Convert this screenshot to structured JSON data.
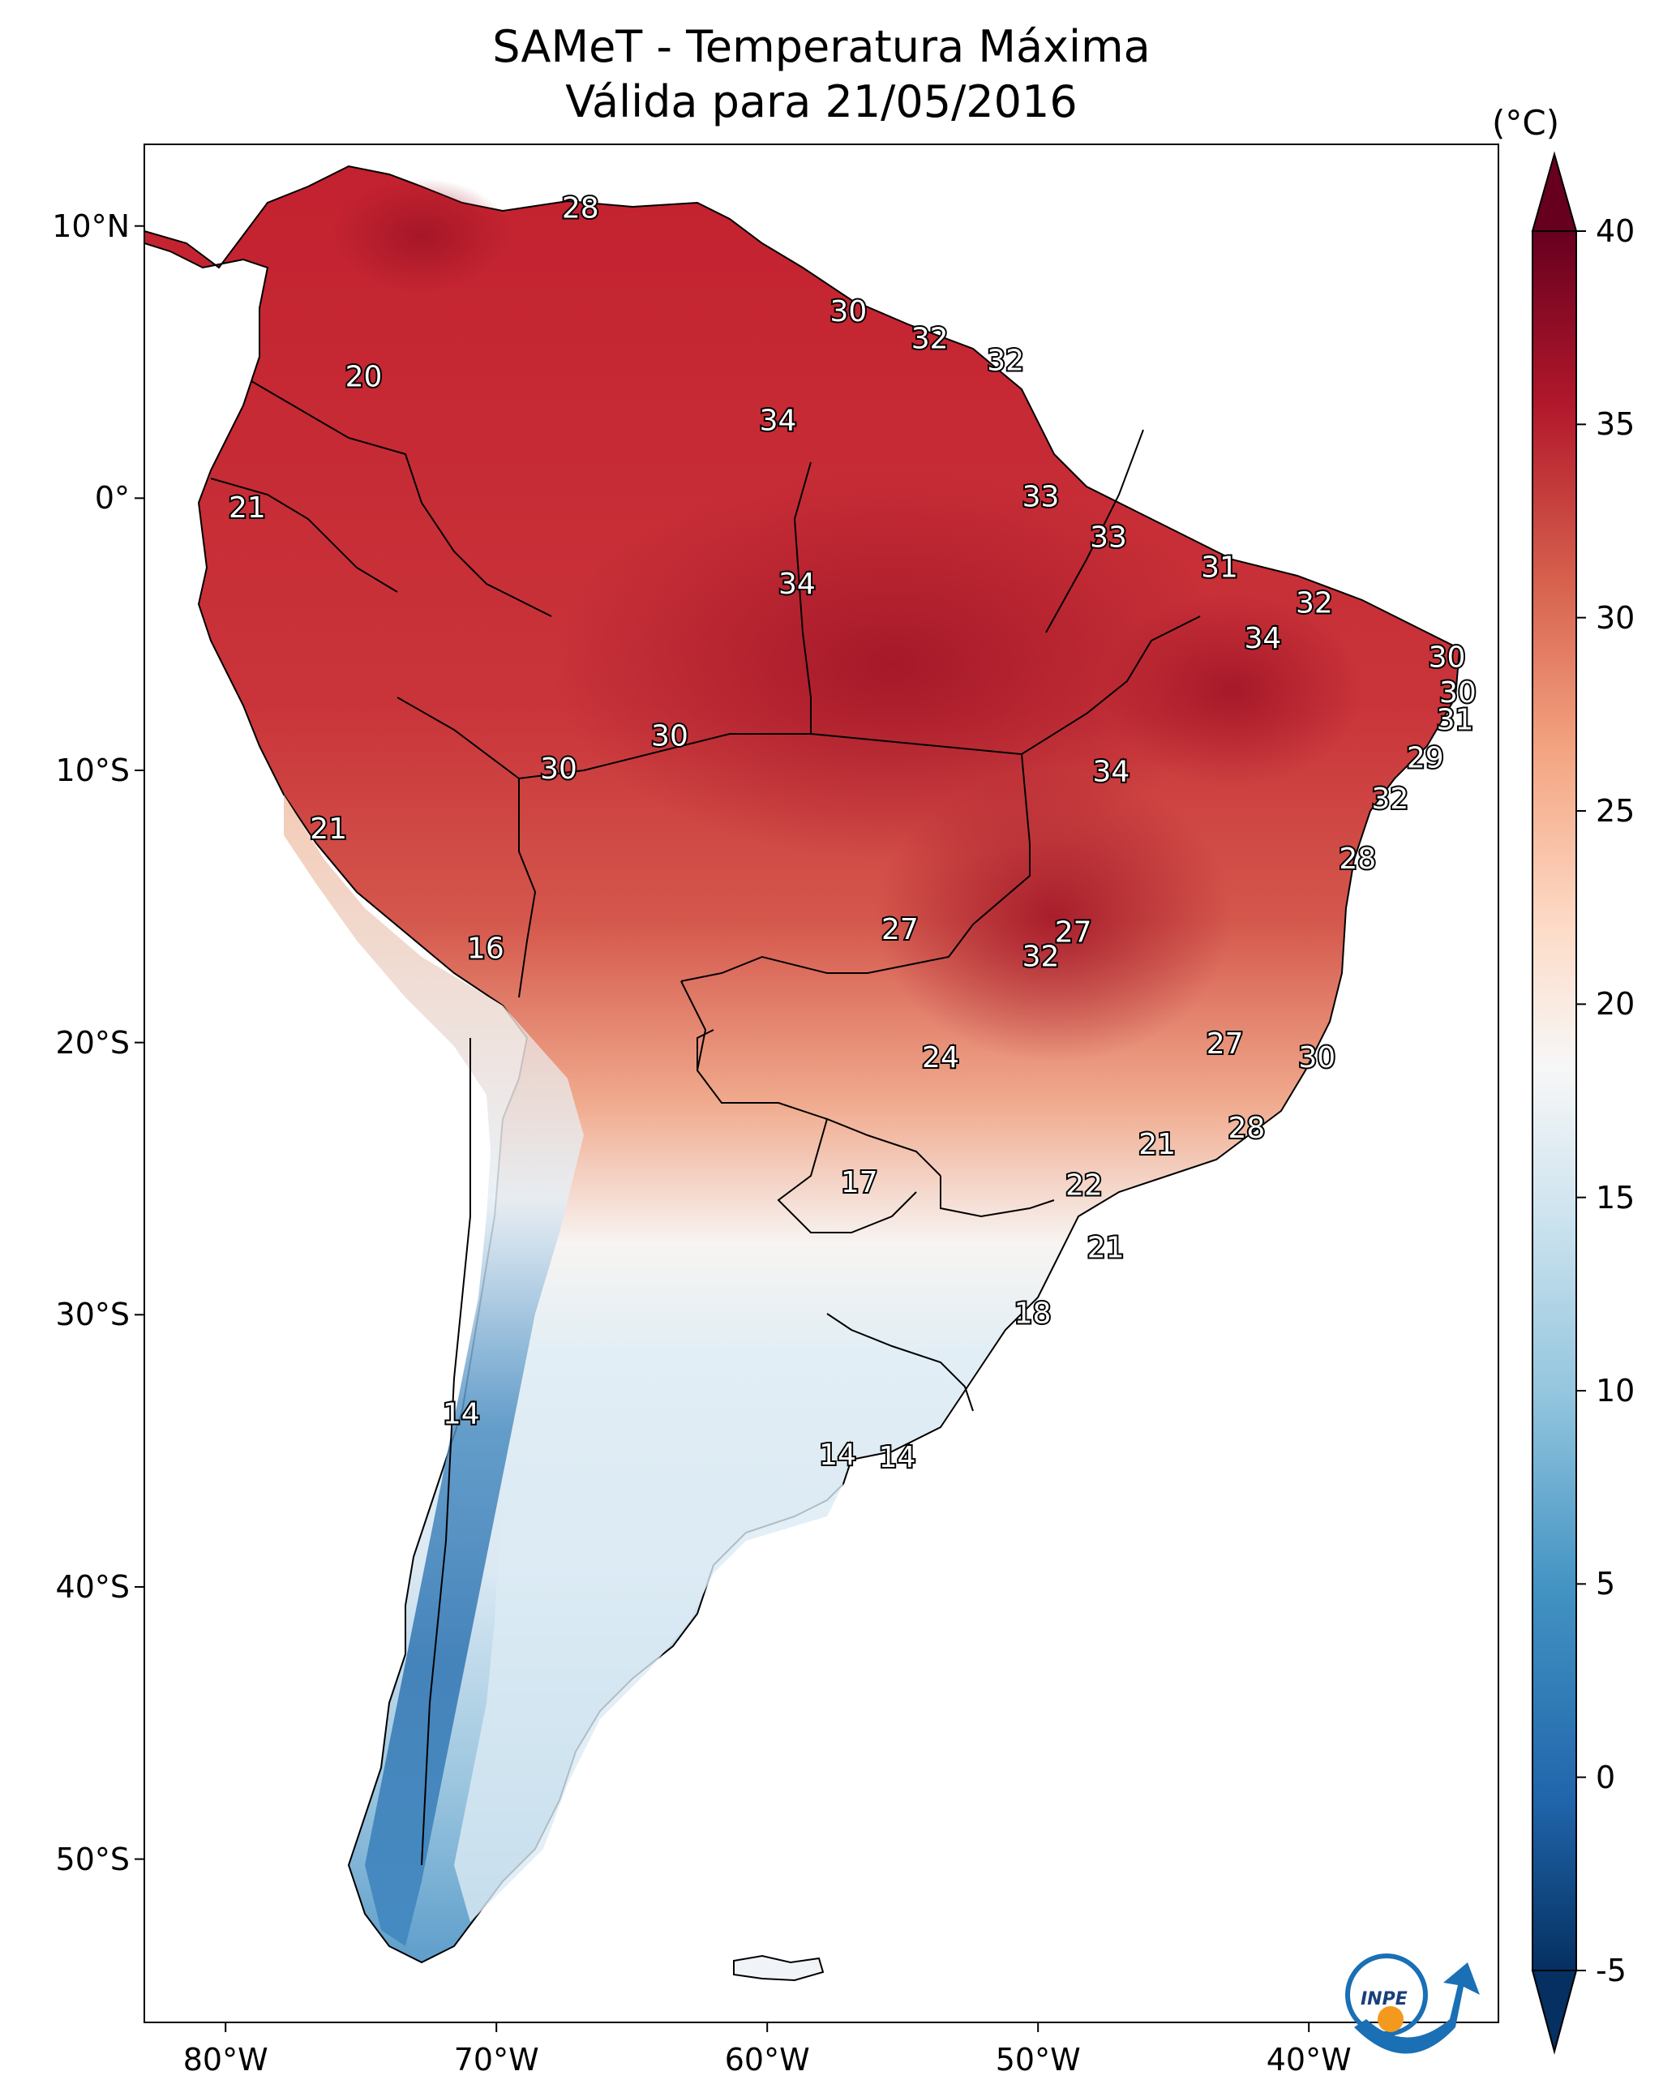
{
  "title": {
    "line1": "SAMeT - Temperatura Máxima",
    "line2": "Válida para 21/05/2016"
  },
  "map": {
    "lon_range": [
      -83,
      -33
    ],
    "lat_range": [
      -56,
      13
    ],
    "lat_ticks": [
      "10°N",
      "0°",
      "10°S",
      "20°S",
      "30°S",
      "40°S",
      "50°S"
    ],
    "lat_tick_values": [
      10,
      0,
      -10,
      -20,
      -30,
      -40,
      -50
    ],
    "lon_ticks": [
      "80°W",
      "70°W",
      "60°W",
      "50°W",
      "40°W"
    ],
    "lon_tick_values": [
      -80,
      -70,
      -60,
      -50,
      -40
    ]
  },
  "colorbar": {
    "unit": "(°C)",
    "ticks": [
      "40",
      "35",
      "30",
      "25",
      "20",
      "15",
      "10",
      "5",
      "0",
      "-5"
    ],
    "range": [
      -5,
      40
    ],
    "colors": [
      "#053061",
      "#2166ac",
      "#4393c3",
      "#92c5de",
      "#d1e5f0",
      "#f7f7f7",
      "#fddbc7",
      "#f4a582",
      "#d6604d",
      "#b2182b",
      "#67001f"
    ]
  },
  "value_labels": [
    {
      "text": "28",
      "lon": -66.9,
      "lat": 10.6
    },
    {
      "text": "30",
      "lon": -57.0,
      "lat": 6.8
    },
    {
      "text": "32",
      "lon": -54.0,
      "lat": 5.8
    },
    {
      "text": "32",
      "lon": -51.2,
      "lat": 5.0
    },
    {
      "text": "20",
      "lon": -74.9,
      "lat": 4.4
    },
    {
      "text": "34",
      "lon": -59.6,
      "lat": 2.8
    },
    {
      "text": "21",
      "lon": -79.2,
      "lat": -0.4
    },
    {
      "text": "33",
      "lon": -49.9,
      "lat": 0.0
    },
    {
      "text": "33",
      "lon": -47.4,
      "lat": -1.5
    },
    {
      "text": "31",
      "lon": -43.3,
      "lat": -2.6
    },
    {
      "text": "34",
      "lon": -58.9,
      "lat": -3.2
    },
    {
      "text": "32",
      "lon": -39.8,
      "lat": -3.9
    },
    {
      "text": "34",
      "lon": -41.7,
      "lat": -5.2
    },
    {
      "text": "30",
      "lon": -34.9,
      "lat": -5.9
    },
    {
      "text": "30",
      "lon": -34.5,
      "lat": -7.2
    },
    {
      "text": "31",
      "lon": -34.6,
      "lat": -8.2
    },
    {
      "text": "30",
      "lon": -63.6,
      "lat": -8.8
    },
    {
      "text": "29",
      "lon": -35.7,
      "lat": -9.6
    },
    {
      "text": "30",
      "lon": -67.7,
      "lat": -10.0
    },
    {
      "text": "34",
      "lon": -47.3,
      "lat": -10.1
    },
    {
      "text": "32",
      "lon": -37.0,
      "lat": -11.1
    },
    {
      "text": "21",
      "lon": -76.2,
      "lat": -12.2
    },
    {
      "text": "28",
      "lon": -38.2,
      "lat": -13.3
    },
    {
      "text": "27",
      "lon": -55.1,
      "lat": -15.9
    },
    {
      "text": "27",
      "lon": -48.7,
      "lat": -16.0
    },
    {
      "text": "16",
      "lon": -70.4,
      "lat": -16.6
    },
    {
      "text": "32",
      "lon": -49.9,
      "lat": -16.9
    },
    {
      "text": "27",
      "lon": -43.1,
      "lat": -20.1
    },
    {
      "text": "24",
      "lon": -53.6,
      "lat": -20.6
    },
    {
      "text": "30",
      "lon": -39.7,
      "lat": -20.6
    },
    {
      "text": "28",
      "lon": -42.3,
      "lat": -23.2
    },
    {
      "text": "21",
      "lon": -45.6,
      "lat": -23.8
    },
    {
      "text": "17",
      "lon": -56.6,
      "lat": -25.2
    },
    {
      "text": "22",
      "lon": -48.3,
      "lat": -25.3
    },
    {
      "text": "21",
      "lon": -47.5,
      "lat": -27.6
    },
    {
      "text": "18",
      "lon": -50.2,
      "lat": -30.0
    },
    {
      "text": "14",
      "lon": -71.3,
      "lat": -33.7
    },
    {
      "text": "14",
      "lon": -57.4,
      "lat": -35.2
    },
    {
      "text": "14",
      "lon": -55.2,
      "lat": -35.3
    }
  ]
}
